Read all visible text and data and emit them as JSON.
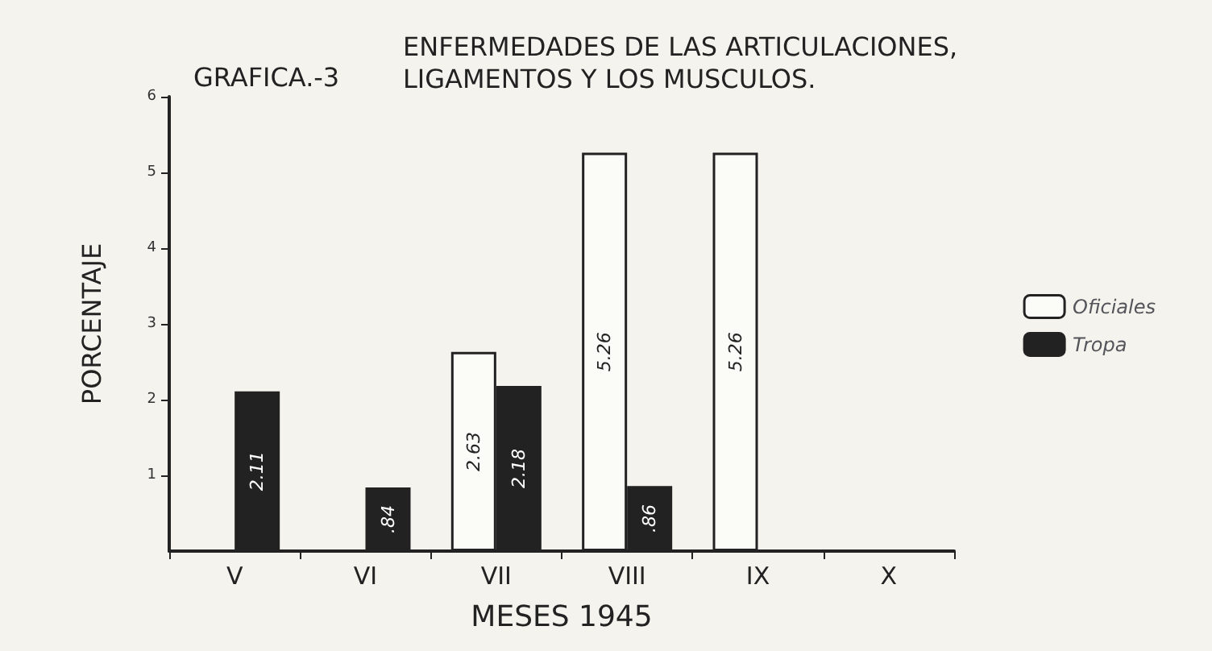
{
  "chart_data": {
    "type": "bar",
    "title": "ENFERMEDADES DE LAS ARTICULACIONES,\nLIGAMENTOS Y LOS MUSCULOS.",
    "annotations": [
      "GRAFICA.-3"
    ],
    "xlabel": "MESES 1945",
    "ylabel": "PORCENTAJE",
    "categories": [
      "V",
      "VI",
      "VII",
      "VIII",
      "IX",
      "X"
    ],
    "series": [
      {
        "name": "Oficiales",
        "color": "#fbfbf7",
        "values": [
          null,
          null,
          2.63,
          5.26,
          5.26,
          null
        ],
        "value_labels": [
          null,
          null,
          "2.63",
          "5.26",
          "5.26",
          null
        ]
      },
      {
        "name": "Tropa",
        "color": "#222222",
        "values": [
          2.11,
          0.84,
          2.18,
          0.86,
          null,
          null
        ],
        "value_labels": [
          "2.11",
          ".84",
          "2.18",
          ".86",
          null,
          null
        ]
      }
    ],
    "ylim": [
      0,
      6
    ],
    "yticks": [
      1,
      2,
      3,
      4,
      5,
      6
    ],
    "grid": false,
    "legend": "right"
  }
}
